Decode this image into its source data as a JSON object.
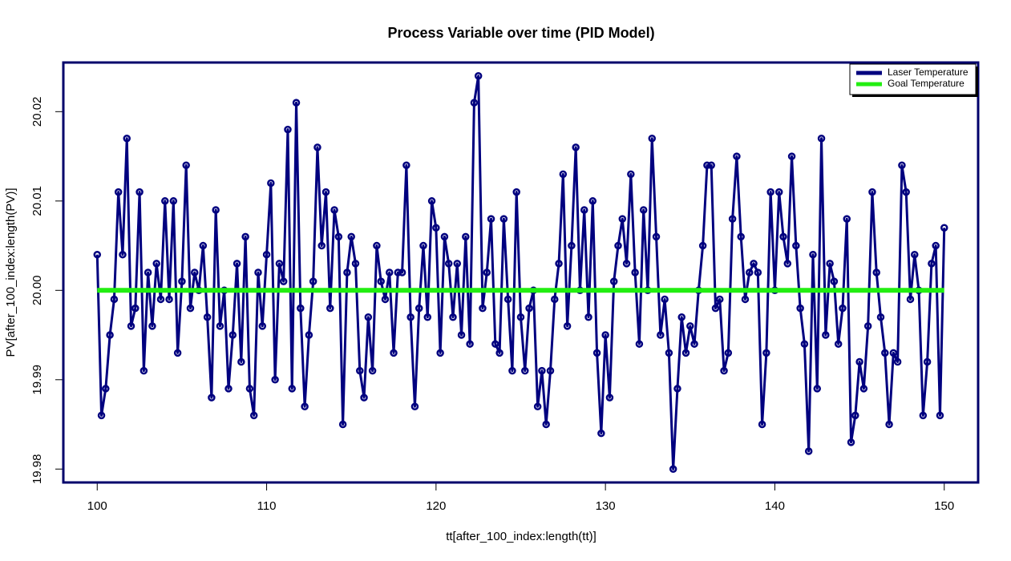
{
  "chart_data": {
    "type": "line",
    "title": "Process Variable over time (PID Model)",
    "x_label": "tt[after_100_index:length(tt)]",
    "y_label": "PV[after_100_index:length(PV)]",
    "xlim": [
      98,
      152
    ],
    "ylim": [
      19.9785,
      20.0255
    ],
    "xticks": [
      100,
      110,
      120,
      130,
      140,
      150
    ],
    "yticks": [
      19.98,
      19.99,
      {
        "value": 20,
        "label": "20.00"
      },
      20.01,
      20.02
    ],
    "legend_position": "top-right",
    "series": [
      {
        "name": "Laser Temperature",
        "color": "#00007f",
        "markers": true,
        "x": [
          100,
          100.25,
          100.5,
          100.75,
          101,
          101.25,
          101.5,
          101.75,
          102,
          102.25,
          102.5,
          102.75,
          103,
          103.25,
          103.5,
          103.75,
          104,
          104.25,
          104.5,
          104.75,
          105,
          105.25,
          105.5,
          105.75,
          106,
          106.25,
          106.5,
          106.75,
          107,
          107.25,
          107.5,
          107.75,
          108,
          108.25,
          108.5,
          108.75,
          109,
          109.25,
          109.5,
          109.75,
          110,
          110.25,
          110.5,
          110.75,
          111,
          111.25,
          111.5,
          111.75,
          112,
          112.25,
          112.5,
          112.75,
          113,
          113.25,
          113.5,
          113.75,
          114,
          114.25,
          114.5,
          114.75,
          115,
          115.25,
          115.5,
          115.75,
          116,
          116.25,
          116.5,
          116.75,
          117,
          117.25,
          117.5,
          117.75,
          118,
          118.25,
          118.5,
          118.75,
          119,
          119.25,
          119.5,
          119.75,
          120,
          120.25,
          120.5,
          120.75,
          121,
          121.25,
          121.5,
          121.75,
          122,
          122.25,
          122.5,
          122.75,
          123,
          123.25,
          123.5,
          123.75,
          124,
          124.25,
          124.5,
          124.75,
          125,
          125.25,
          125.5,
          125.75,
          126,
          126.25,
          126.5,
          126.75,
          127,
          127.25,
          127.5,
          127.75,
          128,
          128.25,
          128.5,
          128.75,
          129,
          129.25,
          129.5,
          129.75,
          130,
          130.25,
          130.5,
          130.75,
          131,
          131.25,
          131.5,
          131.75,
          132,
          132.25,
          132.5,
          132.75,
          133,
          133.25,
          133.5,
          133.75,
          134,
          134.25,
          134.5,
          134.75,
          135,
          135.25,
          135.5,
          135.75,
          136,
          136.25,
          136.5,
          136.75,
          137,
          137.25,
          137.5,
          137.75,
          138,
          138.25,
          138.5,
          138.75,
          139,
          139.25,
          139.5,
          139.75,
          140,
          140.25,
          140.5,
          140.75,
          141,
          141.25,
          141.5,
          141.75,
          142,
          142.25,
          142.5,
          142.75,
          143,
          143.25,
          143.5,
          143.75,
          144,
          144.25,
          144.5,
          144.75,
          145,
          145.25,
          145.5,
          145.75,
          146,
          146.25,
          146.5,
          146.75,
          147,
          147.25,
          147.5,
          147.75,
          148,
          148.25,
          148.5,
          148.75,
          149,
          149.25,
          149.5,
          149.75,
          150
        ],
        "values": [
          20.004,
          19.986,
          19.989,
          19.995,
          19.999,
          20.011,
          20.004,
          20.017,
          19.996,
          19.998,
          20.011,
          19.991,
          20.002,
          19.996,
          20.003,
          19.999,
          20.01,
          19.999,
          20.01,
          19.993,
          20.001,
          20.014,
          19.998,
          20.002,
          20,
          20.005,
          19.997,
          19.988,
          20.009,
          19.996,
          20,
          19.989,
          19.995,
          20.003,
          19.992,
          20.006,
          19.989,
          19.986,
          20.002,
          19.996,
          20.004,
          20.012,
          19.99,
          20.003,
          20.001,
          20.018,
          19.989,
          20.021,
          19.998,
          19.987,
          19.995,
          20.001,
          20.016,
          20.005,
          20.011,
          19.998,
          20.009,
          20.006,
          19.985,
          20.002,
          20.006,
          20.003,
          19.991,
          19.988,
          19.997,
          19.991,
          20.005,
          20.001,
          19.999,
          20.002,
          19.993,
          20.002,
          20.002,
          20.014,
          19.997,
          19.987,
          19.998,
          20.005,
          19.997,
          20.01,
          20.007,
          19.993,
          20.006,
          20.003,
          19.997,
          20.003,
          19.995,
          20.006,
          19.994,
          20.021,
          20.024,
          19.998,
          20.002,
          20.008,
          19.994,
          19.993,
          20.008,
          19.999,
          19.991,
          20.011,
          19.997,
          19.991,
          19.998,
          20,
          19.987,
          19.991,
          19.985,
          19.991,
          19.999,
          20.003,
          20.013,
          19.996,
          20.005,
          20.016,
          20,
          20.009,
          19.997,
          20.01,
          19.993,
          19.984,
          19.995,
          19.988,
          20.001,
          20.005,
          20.008,
          20.003,
          20.013,
          20.002,
          19.994,
          20.009,
          20,
          20.017,
          20.006,
          19.995,
          19.999,
          19.993,
          19.98,
          19.989,
          19.997,
          19.993,
          19.996,
          19.994,
          20,
          20.005,
          20.014,
          20.014,
          19.998,
          19.999,
          19.991,
          19.993,
          20.008,
          20.015,
          20.006,
          19.999,
          20.002,
          20.003,
          20.002,
          19.985,
          19.993,
          20.011,
          20,
          20.011,
          20.006,
          20.003,
          20.015,
          20.005,
          19.998,
          19.994,
          19.982,
          20.004,
          19.989,
          20.017,
          19.995,
          20.003,
          20.001,
          19.994,
          19.998,
          20.008,
          19.983,
          19.986,
          19.992,
          19.989,
          19.996,
          20.011,
          20.002,
          19.997,
          19.993,
          19.985,
          19.993,
          19.992,
          20.014,
          20.011,
          19.999,
          20.004,
          20,
          19.986,
          19.992,
          20.003,
          20.005,
          19.986,
          20.007
        ]
      },
      {
        "name": "Goal Temperature",
        "color": "#22ee11",
        "markers": false,
        "x": [
          100,
          150
        ],
        "values": [
          20,
          20
        ]
      }
    ]
  }
}
